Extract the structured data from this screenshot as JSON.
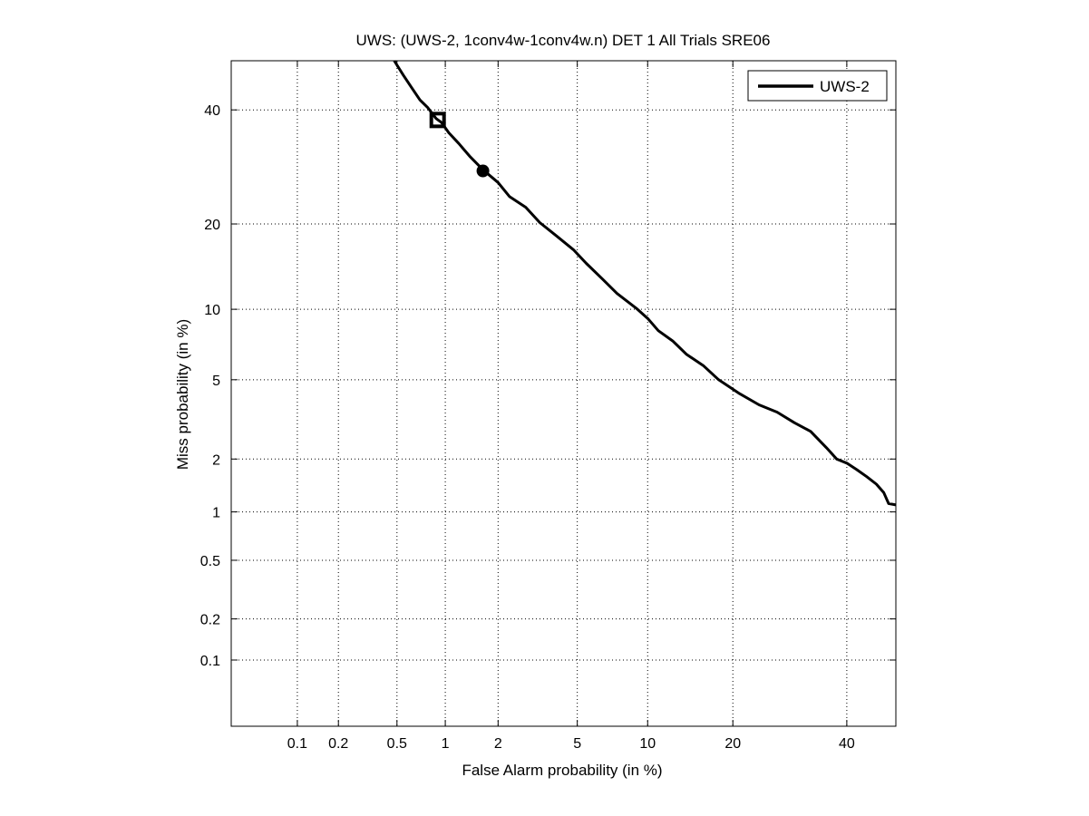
{
  "chart_data": {
    "type": "line",
    "title": "UWS: (UWS-2, 1conv4w-1conv4w.n) DET 1 All Trials SRE06",
    "xlabel": "False Alarm probability (in %)",
    "ylabel": "Miss probability (in %)",
    "xscale": "probit",
    "yscale": "probit",
    "xlim": [
      0.03,
      50
    ],
    "ylim": [
      0.03,
      50
    ],
    "x_ticks": [
      0.1,
      0.2,
      0.5,
      1,
      2,
      5,
      10,
      20,
      40
    ],
    "x_tick_labels": [
      "0.1",
      "0.2",
      "0.5",
      "1",
      "2",
      "5",
      "10",
      "20",
      "40"
    ],
    "y_ticks": [
      0.1,
      0.2,
      0.5,
      1,
      2,
      5,
      10,
      20,
      40
    ],
    "y_tick_labels": [
      "0.1",
      "0.2",
      "0.5",
      "1",
      "2",
      "5",
      "10",
      "20",
      "40"
    ],
    "grid": true,
    "legend_position": "top-right",
    "series": [
      {
        "name": "UWS-2",
        "color": "#000000",
        "points": [
          [
            0.48,
            50
          ],
          [
            0.55,
            47
          ],
          [
            0.62,
            44.5
          ],
          [
            0.7,
            42
          ],
          [
            0.78,
            40.5
          ],
          [
            0.88,
            38.3
          ],
          [
            0.95,
            37.5
          ],
          [
            1.05,
            35.5
          ],
          [
            1.2,
            33.5
          ],
          [
            1.4,
            31
          ],
          [
            1.65,
            28.7
          ],
          [
            2.0,
            26.5
          ],
          [
            2.3,
            24.2
          ],
          [
            2.8,
            22.5
          ],
          [
            3.3,
            20.2
          ],
          [
            4.0,
            18.3
          ],
          [
            4.8,
            16.5
          ],
          [
            5.5,
            14.8
          ],
          [
            6.5,
            13.0
          ],
          [
            7.5,
            11.5
          ],
          [
            9.0,
            10.1
          ],
          [
            10.0,
            9.2
          ],
          [
            11.0,
            8.2
          ],
          [
            12.5,
            7.4
          ],
          [
            14.0,
            6.5
          ],
          [
            16.0,
            5.8
          ],
          [
            18.0,
            5.0
          ],
          [
            21.0,
            4.3
          ],
          [
            24.0,
            3.8
          ],
          [
            27.0,
            3.5
          ],
          [
            30.0,
            3.1
          ],
          [
            33.0,
            2.8
          ],
          [
            36.0,
            2.3
          ],
          [
            38.0,
            2.0
          ],
          [
            40.0,
            1.9
          ],
          [
            42.0,
            1.75
          ],
          [
            44.0,
            1.6
          ],
          [
            46.0,
            1.45
          ],
          [
            47.5,
            1.3
          ],
          [
            48.5,
            1.12
          ],
          [
            50.0,
            1.1
          ]
        ]
      }
    ],
    "markers": [
      {
        "shape": "square",
        "x": 0.9,
        "y": 38.0
      },
      {
        "shape": "circle",
        "x": 1.65,
        "y": 28.5
      }
    ]
  }
}
